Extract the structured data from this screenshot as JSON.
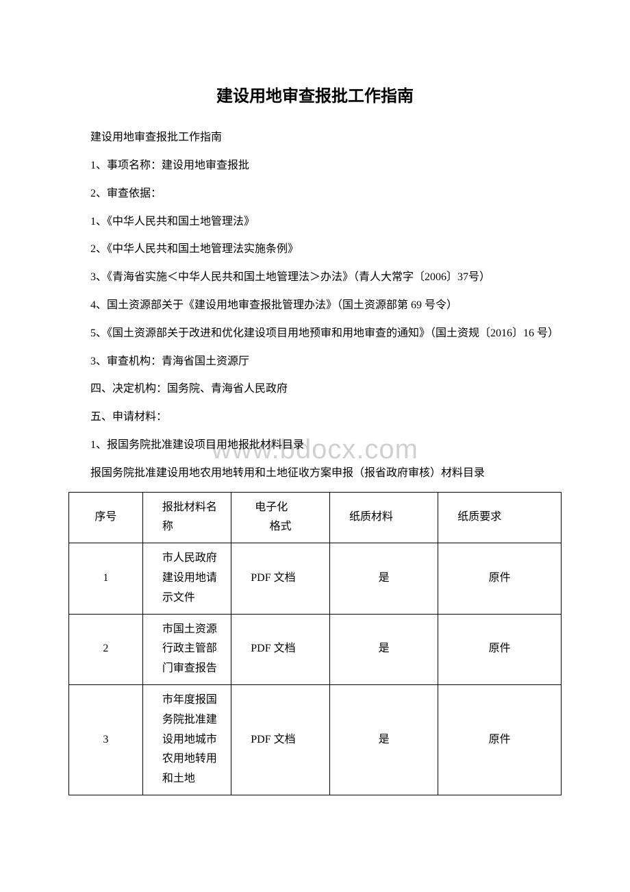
{
  "title": "建设用地审查报批工作指南",
  "paragraphs": [
    "建设用地审查报批工作指南",
    "1、事项名称：建设用地审查报批",
    "2、审查依据：",
    "1、《中华人民共和国土地管理法》",
    "2、《中华人民共和国土地管理法实施条例》",
    "3、《青海省实施＜中华人民共和国土地管理法＞办法》（青人大常字〔2006〕37号）",
    "4、国土资源部关于《建设用地审查报批管理办法》（国土资源部第 69 号令）",
    "5、《国土资源部关于改进和优化建设项目用地预审和用地审查的通知》（国土资规〔2016〕16 号）",
    "3、审查机构：青海省国土资源厅",
    "四、决定机构：国务院、青海省人民政府",
    "五、申请材料：",
    "1、报国务院批准建设项目用地报批材料目录",
    "报国务院批准建设用地农用地转用和土地征收方案申报（报省政府审核）材料目录"
  ],
  "watermark": "www.bdocx.com",
  "table": {
    "headers": {
      "seq": "序号",
      "name": "报批材料名称",
      "format": "电子化",
      "format2": "格式",
      "paper": "纸质材料",
      "req": "纸质要求"
    },
    "rows": [
      {
        "seq": "1",
        "name": "市人民政府建设用地请示文件",
        "format": "PDF 文档",
        "paper": "是",
        "req": "原件"
      },
      {
        "seq": "2",
        "name": "市国土资源行政主管部门审查报告",
        "format": "PDF 文档",
        "paper": "是",
        "req": "原件"
      },
      {
        "seq": "3",
        "name": "市年度报国务院批准建设用地城市农用地转用和土地",
        "format": "PDF 文档",
        "paper": "是",
        "req": "原件"
      }
    ]
  }
}
